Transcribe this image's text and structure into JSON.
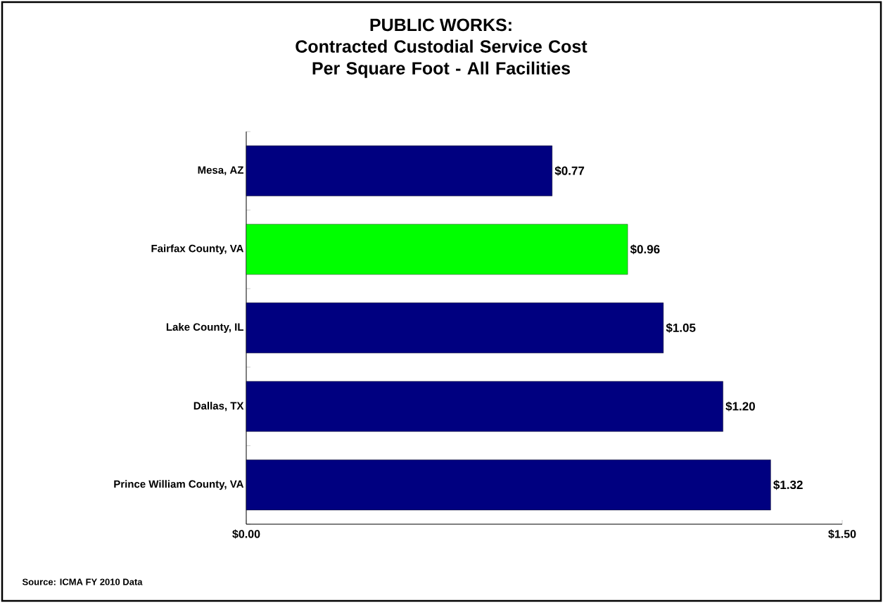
{
  "chart_data": {
    "type": "bar",
    "orientation": "horizontal",
    "title": "PUBLIC WORKS:",
    "subtitle": "Contracted Custodial Service Cost Per Square Foot - All Facilities",
    "categories": [
      "Mesa, AZ",
      "Fairfax County, VA",
      "Lake County, IL",
      "Dallas, TX",
      "Prince William County, VA"
    ],
    "values": [
      0.77,
      0.96,
      1.05,
      1.2,
      1.32
    ],
    "colors": [
      "#000080",
      "#00ff00",
      "#000080",
      "#000080",
      "#000080"
    ],
    "value_labels": [
      "$0.77",
      "$0.96",
      "$1.05",
      "$1.20",
      "$1.32"
    ],
    "xlim": [
      0,
      1.5
    ],
    "xticks": [
      {
        "value": 0,
        "label": "$0.00"
      },
      {
        "value": 1.5,
        "label": "$1.50"
      }
    ],
    "grid": false,
    "annotations": [
      "Source: ICMA FY 2010 Data"
    ]
  }
}
